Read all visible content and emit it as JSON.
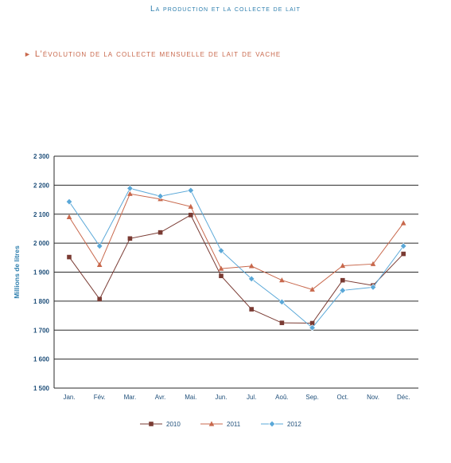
{
  "page": {
    "header": "La production et la collecte de lait",
    "subtitle_marker": "►",
    "subtitle": "L’évolution de la collecte mensuelle de lait de vache"
  },
  "colors": {
    "header": "#2e7fae",
    "subtitle": "#c8684c",
    "series_2010": "#7a3b33",
    "series_2011": "#c8684c",
    "series_2012": "#5aa8d8",
    "axis_label": "#2e7fae",
    "ticks": "#1f4f7a"
  },
  "chart_data": {
    "type": "line",
    "title": "",
    "xlabel": "",
    "ylabel": "Millions de litres",
    "categories": [
      "Jan.",
      "Fév.",
      "Mar.",
      "Avr.",
      "Mai.",
      "Jun.",
      "Jul.",
      "Aoû.",
      "Sep.",
      "Oct.",
      "Nov.",
      "Déc."
    ],
    "yticks": [
      1500,
      1600,
      1700,
      1800,
      1900,
      2000,
      2100,
      2200,
      2300
    ],
    "ytick_labels": [
      "1 500",
      "1 600",
      "1 700",
      "1 800",
      "1 900",
      "2 000",
      "2 100",
      "2 200",
      "2 300"
    ],
    "ylim": [
      1500,
      2300
    ],
    "grid": true,
    "legend_position": "bottom-center",
    "series": [
      {
        "name": "2010",
        "marker": "square",
        "color": "#7a3b33",
        "values": [
          1952,
          1807,
          2016,
          2037,
          2097,
          1887,
          1772,
          1725,
          1724,
          1872,
          1854,
          1963
        ]
      },
      {
        "name": "2011",
        "marker": "triangle",
        "color": "#c8684c",
        "values": [
          2090,
          1925,
          2170,
          2152,
          2126,
          1912,
          1921,
          1872,
          1840,
          1922,
          1928,
          2069
        ]
      },
      {
        "name": "2012",
        "marker": "diamond",
        "color": "#5aa8d8",
        "values": [
          2143,
          1990,
          2189,
          2162,
          2182,
          1974,
          1877,
          1797,
          1708,
          1837,
          1848,
          1990
        ]
      }
    ]
  }
}
